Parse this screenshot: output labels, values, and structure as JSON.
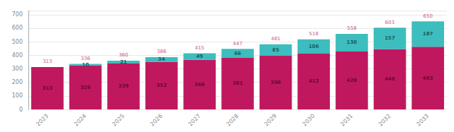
{
  "chart_data": {
    "type": "bar",
    "stacked": true,
    "categories": [
      "2023",
      "2024",
      "2025",
      "2026",
      "2027",
      "2028",
      "2029",
      "2030",
      "2031",
      "2032",
      "2033"
    ],
    "series": [
      {
        "color": "#C0185E",
        "values": [
          313,
          326,
          339,
          352,
          366,
          381,
          396,
          412,
          428,
          446,
          463
        ]
      },
      {
        "color": "#3DBDBD",
        "values": [
          0,
          10,
          21,
          34,
          49,
          66,
          85,
          106,
          130,
          157,
          187
        ]
      }
    ],
    "totals": [
      313,
      336,
      360,
      386,
      415,
      447,
      481,
      518,
      558,
      603,
      650
    ],
    "ylim": [
      0,
      730
    ],
    "yticks": [
      0,
      100,
      200,
      300,
      400,
      500,
      600,
      700
    ],
    "grid": true,
    "data_labels": true
  }
}
